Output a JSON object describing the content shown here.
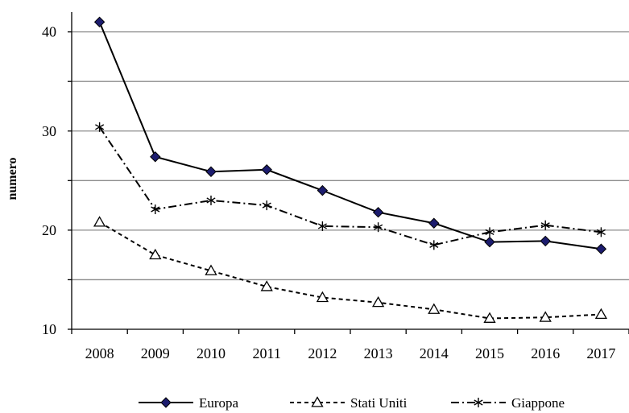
{
  "chart_data": {
    "type": "line",
    "title": "",
    "xlabel": "",
    "ylabel": "numero",
    "categories": [
      "2008",
      "2009",
      "2010",
      "2011",
      "2012",
      "2013",
      "2014",
      "2015",
      "2016",
      "2017"
    ],
    "ylim": [
      10,
      42
    ],
    "y_ticks": [
      "10",
      "20",
      "30",
      "40"
    ],
    "grid": true,
    "legend_position": "bottom",
    "series": [
      {
        "name": "Europa",
        "marker": "diamond",
        "line_style": "solid",
        "color": "#000000",
        "marker_fill": "#1c1c6e",
        "values": [
          41.0,
          27.4,
          25.9,
          26.1,
          24.0,
          21.8,
          20.7,
          18.8,
          18.9,
          18.1
        ]
      },
      {
        "name": "Stati Uniti",
        "marker": "triangle",
        "line_style": "dashed",
        "color": "#000000",
        "marker_fill": "#ffffff",
        "values": [
          20.8,
          17.5,
          15.9,
          14.3,
          13.2,
          12.7,
          12.0,
          11.1,
          11.2,
          11.5
        ]
      },
      {
        "name": "Giappone",
        "marker": "asterisk",
        "line_style": "dashdot",
        "color": "#000000",
        "marker_fill": "#000000",
        "values": [
          30.4,
          22.1,
          23.0,
          22.5,
          20.4,
          20.3,
          18.5,
          19.8,
          20.5,
          19.8
        ]
      }
    ]
  }
}
